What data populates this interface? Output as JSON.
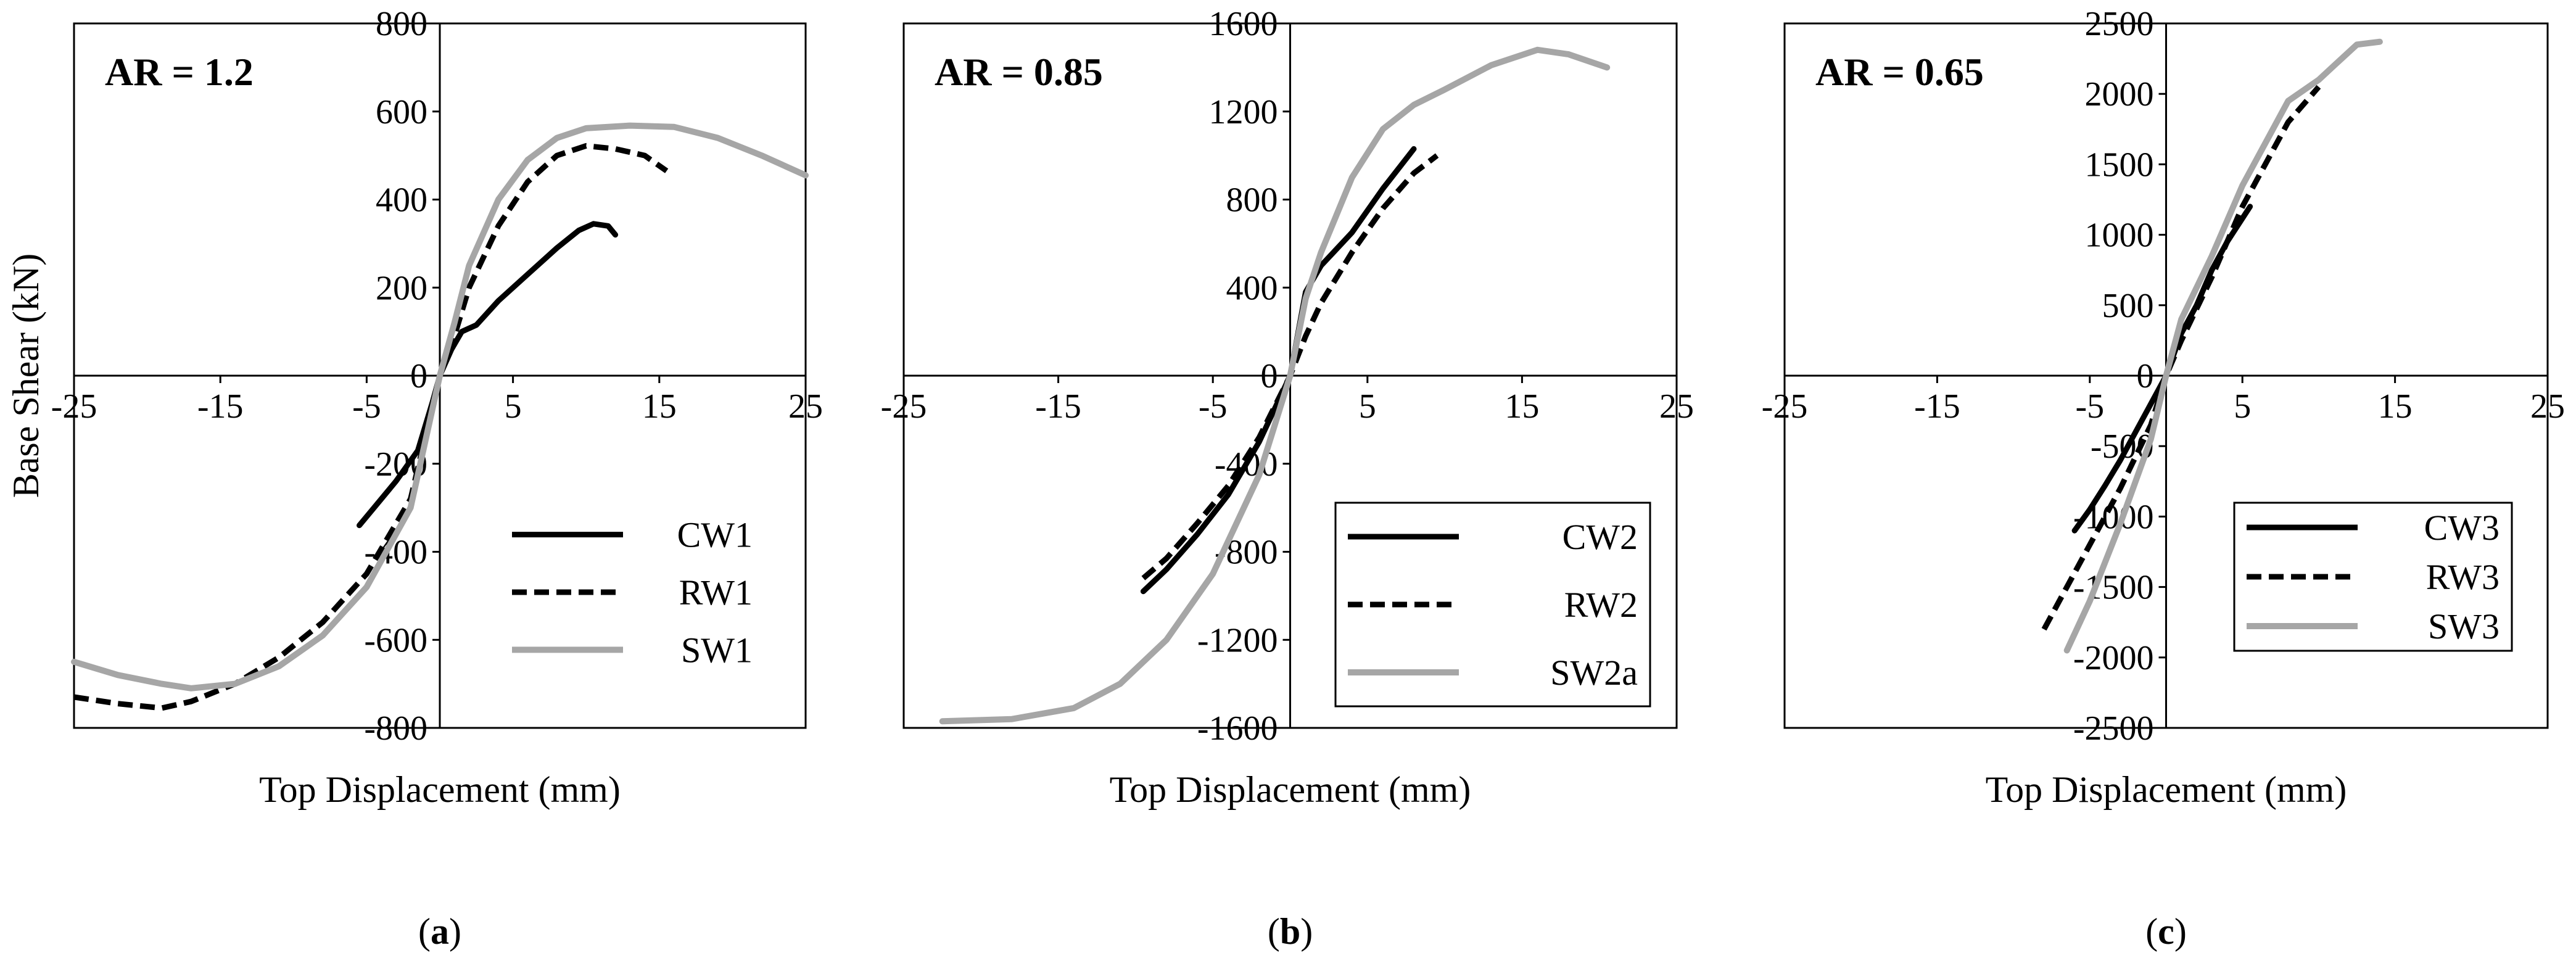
{
  "chart_data": [
    {
      "type": "line",
      "panel_label": "a",
      "annotation": "AR = 1.2",
      "xlabel": "Top Displacement (mm)",
      "ylabel": "Base Shear (kN)",
      "xlim": [
        -25,
        25
      ],
      "ylim": [
        -800,
        800
      ],
      "xticks": [
        -25,
        -15,
        -5,
        5,
        15,
        25
      ],
      "xtick_labels": [
        "-25",
        "-15",
        "-5",
        "5",
        "15",
        "25"
      ],
      "yticks": [
        -800,
        -600,
        -400,
        -200,
        0,
        200,
        400,
        600,
        800
      ],
      "ytick_labels": [
        "-800",
        "-600",
        "-400",
        "-200",
        "0",
        "200",
        "400",
        "600",
        "800"
      ],
      "legend_placement": "bottom-right",
      "legend_boxed": false,
      "series": [
        {
          "name": "CW1",
          "color": "#000000",
          "style": "solid",
          "points": [
            [
              -5.5,
              -340
            ],
            [
              -4.5,
              -300
            ],
            [
              -3,
              -240
            ],
            [
              -1.5,
              -170
            ],
            [
              -0.5,
              -60
            ],
            [
              0,
              0
            ],
            [
              0.8,
              60
            ],
            [
              1.5,
              100
            ],
            [
              2.5,
              115
            ],
            [
              4,
              170
            ],
            [
              6,
              230
            ],
            [
              8,
              290
            ],
            [
              9.5,
              330
            ],
            [
              10.5,
              345
            ],
            [
              11.5,
              340
            ],
            [
              12,
              320
            ]
          ]
        },
        {
          "name": "RW1",
          "color": "#000000",
          "style": "dashed",
          "points": [
            [
              -25,
              -730
            ],
            [
              -22,
              -745
            ],
            [
              -19,
              -755
            ],
            [
              -17,
              -740
            ],
            [
              -14,
              -700
            ],
            [
              -11,
              -640
            ],
            [
              -8,
              -560
            ],
            [
              -5,
              -450
            ],
            [
              -2,
              -280
            ],
            [
              0,
              0
            ],
            [
              1,
              90
            ],
            [
              2,
              200
            ],
            [
              4,
              340
            ],
            [
              6,
              440
            ],
            [
              8,
              500
            ],
            [
              10,
              522
            ],
            [
              12,
              515
            ],
            [
              14,
              500
            ],
            [
              15.5,
              465
            ]
          ]
        },
        {
          "name": "SW1",
          "color": "#a6a6a6",
          "style": "solid",
          "points": [
            [
              -25,
              -650
            ],
            [
              -22,
              -680
            ],
            [
              -19,
              -700
            ],
            [
              -17,
              -710
            ],
            [
              -14,
              -700
            ],
            [
              -11,
              -660
            ],
            [
              -8,
              -590
            ],
            [
              -5,
              -480
            ],
            [
              -2,
              -300
            ],
            [
              0,
              0
            ],
            [
              1,
              120
            ],
            [
              2,
              250
            ],
            [
              4,
              400
            ],
            [
              6,
              490
            ],
            [
              8,
              540
            ],
            [
              10,
              562
            ],
            [
              13,
              568
            ],
            [
              16,
              565
            ],
            [
              19,
              540
            ],
            [
              22,
              500
            ],
            [
              25,
              455
            ]
          ]
        }
      ]
    },
    {
      "type": "line",
      "panel_label": "b",
      "annotation": "AR = 0.85",
      "xlabel": "Top Displacement (mm)",
      "ylabel": "",
      "xlim": [
        -25,
        25
      ],
      "ylim": [
        -1600,
        1600
      ],
      "xticks": [
        -25,
        -15,
        -5,
        5,
        15,
        25
      ],
      "xtick_labels": [
        "-25",
        "-15",
        "-5",
        "5",
        "15",
        "25"
      ],
      "yticks": [
        -1600,
        -1200,
        -800,
        -400,
        0,
        400,
        800,
        1200,
        1600
      ],
      "ytick_labels": [
        "-1600",
        "-1200",
        "-800",
        "-400",
        "0",
        "400",
        "800",
        "1200",
        "1600"
      ],
      "legend_placement": "bottom-right",
      "legend_boxed": true,
      "series": [
        {
          "name": "CW2",
          "color": "#000000",
          "style": "solid",
          "points": [
            [
              -9.5,
              -980
            ],
            [
              -8,
              -880
            ],
            [
              -6,
              -720
            ],
            [
              -4,
              -540
            ],
            [
              -2,
              -300
            ],
            [
              0,
              0
            ],
            [
              1,
              380
            ],
            [
              2,
              500
            ],
            [
              4,
              650
            ],
            [
              6,
              850
            ],
            [
              8,
              1030
            ]
          ]
        },
        {
          "name": "RW2",
          "color": "#000000",
          "style": "dashed",
          "points": [
            [
              -9.5,
              -920
            ],
            [
              -8,
              -830
            ],
            [
              -6,
              -670
            ],
            [
              -4,
              -500
            ],
            [
              -2,
              -280
            ],
            [
              0,
              0
            ],
            [
              1,
              180
            ],
            [
              2,
              330
            ],
            [
              4,
              560
            ],
            [
              6,
              760
            ],
            [
              8,
              920
            ],
            [
              9.5,
              1000
            ]
          ]
        },
        {
          "name": "SW2a",
          "color": "#a6a6a6",
          "style": "solid",
          "points": [
            [
              -22.5,
              -1570
            ],
            [
              -18,
              -1560
            ],
            [
              -14,
              -1510
            ],
            [
              -11,
              -1400
            ],
            [
              -8,
              -1200
            ],
            [
              -5,
              -900
            ],
            [
              -2,
              -450
            ],
            [
              0,
              0
            ],
            [
              1,
              350
            ],
            [
              2,
              560
            ],
            [
              4,
              900
            ],
            [
              6,
              1120
            ],
            [
              8,
              1230
            ],
            [
              10,
              1300
            ],
            [
              13,
              1410
            ],
            [
              16,
              1480
            ],
            [
              18,
              1460
            ],
            [
              20.5,
              1400
            ]
          ]
        }
      ]
    },
    {
      "type": "line",
      "panel_label": "c",
      "annotation": "AR = 0.65",
      "xlabel": "Top Displacement (mm)",
      "ylabel": "",
      "xlim": [
        -25,
        25
      ],
      "ylim": [
        -2500,
        2500
      ],
      "xticks": [
        -25,
        -15,
        -5,
        5,
        15,
        25
      ],
      "xtick_labels": [
        "-25",
        "-15",
        "-5",
        "5",
        "15",
        "25"
      ],
      "yticks": [
        -2500,
        -2000,
        -1500,
        -1000,
        -500,
        0,
        500,
        1000,
        1500,
        2000,
        2500
      ],
      "ytick_labels": [
        "-2500",
        "-2000",
        "-1500",
        "-1000",
        "-500",
        "0",
        "500",
        "1000",
        "1500",
        "2000",
        "2500"
      ],
      "legend_placement": "bottom-right",
      "legend_boxed": true,
      "series": [
        {
          "name": "CW3",
          "color": "#000000",
          "style": "solid",
          "points": [
            [
              -6,
              -1100
            ],
            [
              -5,
              -950
            ],
            [
              -4,
              -780
            ],
            [
              -3,
              -600
            ],
            [
              -2,
              -400
            ],
            [
              -1,
              -200
            ],
            [
              0,
              0
            ],
            [
              1,
              300
            ],
            [
              2,
              500
            ],
            [
              3,
              750
            ],
            [
              4,
              950
            ],
            [
              5.5,
              1200
            ]
          ]
        },
        {
          "name": "RW3",
          "color": "#000000",
          "style": "dashed",
          "points": [
            [
              -8,
              -1800
            ],
            [
              -7,
              -1600
            ],
            [
              -5,
              -1200
            ],
            [
              -3,
              -800
            ],
            [
              -1,
              -350
            ],
            [
              0,
              0
            ],
            [
              1,
              250
            ],
            [
              3,
              700
            ],
            [
              5,
              1200
            ],
            [
              6,
              1400
            ],
            [
              8,
              1800
            ],
            [
              10,
              2050
            ]
          ]
        },
        {
          "name": "SW3",
          "color": "#a6a6a6",
          "style": "solid",
          "points": [
            [
              -6.5,
              -1950
            ],
            [
              -5,
              -1600
            ],
            [
              -3,
              -1050
            ],
            [
              -1,
              -450
            ],
            [
              0,
              0
            ],
            [
              1,
              400
            ],
            [
              3,
              850
            ],
            [
              5,
              1350
            ],
            [
              7,
              1750
            ],
            [
              8,
              1950
            ],
            [
              10,
              2100
            ],
            [
              11,
              2200
            ],
            [
              12.5,
              2350
            ],
            [
              14,
              2370
            ]
          ]
        }
      ]
    }
  ]
}
